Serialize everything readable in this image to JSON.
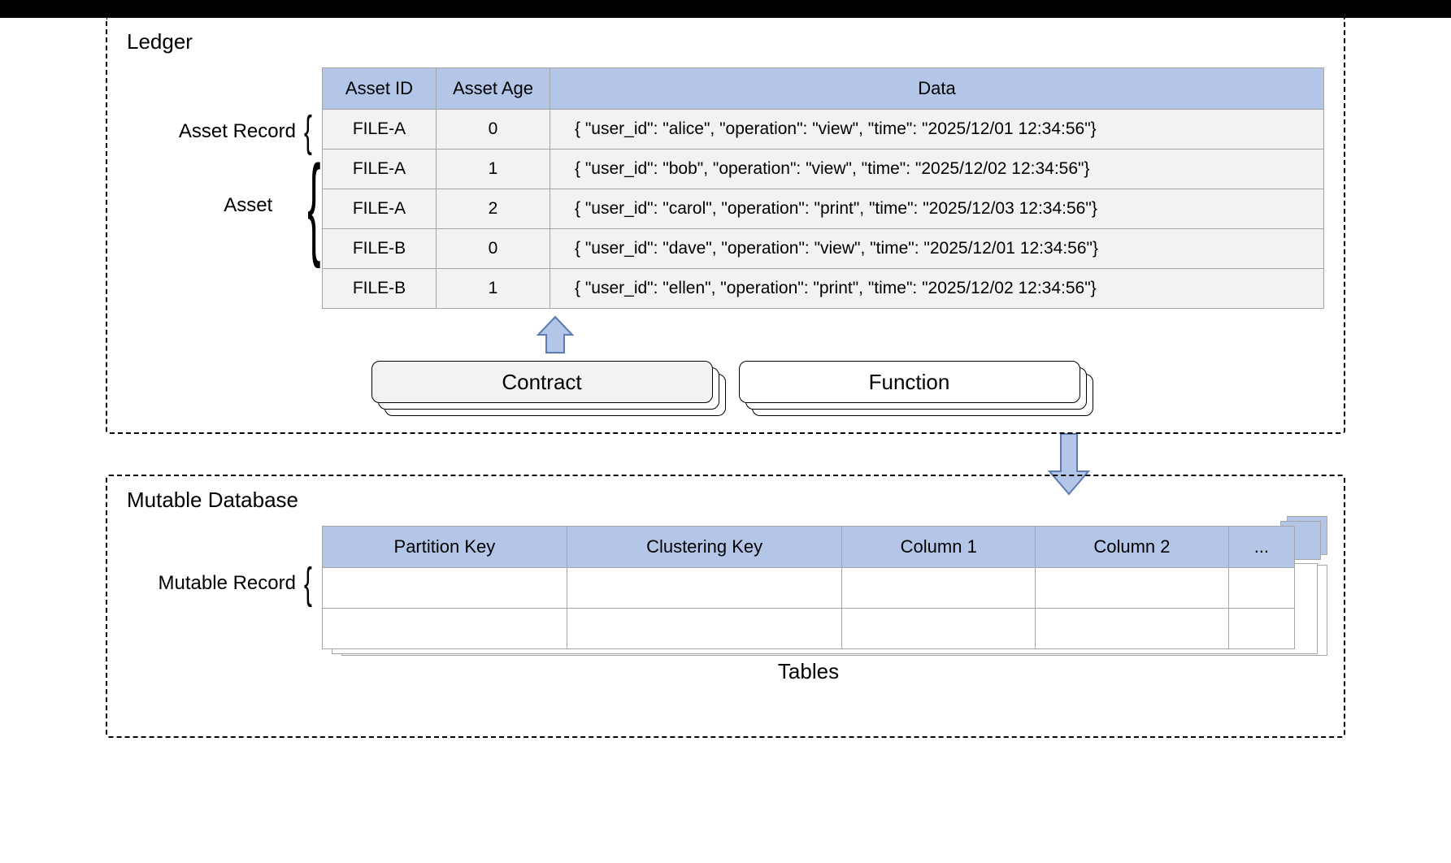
{
  "colors": {
    "header_fill": "#b3c6e7",
    "cell_fill": "#f2f2f2",
    "border": "#a6a6a6",
    "arrow_fill": "#b3c6e7",
    "arrow_stroke": "#5b7bb4",
    "dashed": "#000000",
    "black_bar": "#000000"
  },
  "ledger": {
    "title": "Ledger",
    "labels": {
      "asset_record": "Asset Record",
      "asset": "Asset"
    },
    "columns": [
      "Asset ID",
      "Asset Age",
      "Data"
    ],
    "rows": [
      {
        "id": "FILE-A",
        "age": "0",
        "data": "{ \"user_id\": \"alice\", \"operation\": \"view\", \"time\": \"2025/12/01 12:34:56\"}"
      },
      {
        "id": "FILE-A",
        "age": "1",
        "data": "{ \"user_id\": \"bob\", \"operation\": \"view\", \"time\": \"2025/12/02 12:34:56\"}"
      },
      {
        "id": "FILE-A",
        "age": "2",
        "data": "{ \"user_id\": \"carol\", \"operation\": \"print\", \"time\": \"2025/12/03 12:34:56\"}"
      },
      {
        "id": "FILE-B",
        "age": "0",
        "data": "{ \"user_id\": \"dave\", \"operation\": \"view\", \"time\": \"2025/12/01 12:34:56\"}"
      },
      {
        "id": "FILE-B",
        "age": "1",
        "data": "{ \"user_id\": \"ellen\", \"operation\": \"print\", \"time\": \"2025/12/02 12:34:56\"}"
      }
    ],
    "contract_label": "Contract",
    "function_label": "Function"
  },
  "db": {
    "title": "Mutable Database",
    "labels": {
      "mutable_record": "Mutable Record"
    },
    "columns": [
      "Partition Key",
      "Clustering Key",
      "Column 1",
      "Column 2",
      "..."
    ],
    "row_count": 2,
    "tables_caption": "Tables"
  }
}
